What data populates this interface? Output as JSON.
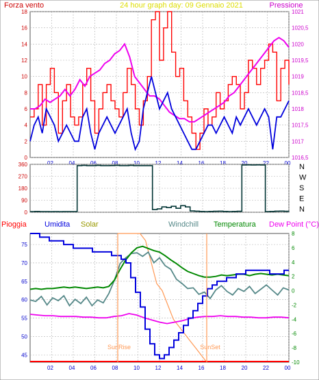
{
  "header": {
    "left_title": "Forza vento",
    "center_title": "24 hour graph day:  09 Gennaio 2021",
    "right_title": "Pressione"
  },
  "colors": {
    "wind": "#ff0000",
    "wind_avg": "#0000dd",
    "pressure": "#ee00ee",
    "direction": "#003333",
    "humidity": "#0000dd",
    "solar": "#ff9955",
    "windchill": "#558888",
    "temperature": "#008800",
    "dewpoint": "#ee00ee",
    "rain": "#ff0000",
    "axis_left": "#cc0000",
    "axis_right": "#cc00cc",
    "axis_bottom": "#0000cc",
    "grid": "#b0b0b0",
    "sun": "#ff9955"
  },
  "chart_data": [
    {
      "type": "line",
      "title": "24 hour graph day:  09 Gennaio 2021",
      "ylabel": "Forza vento",
      "y2label": "Pressione",
      "ylim": [
        0,
        18
      ],
      "y2lim": [
        1016.5,
        1021
      ],
      "y_ticks": [
        "0",
        "2",
        "4",
        "6",
        "8",
        "10",
        "12",
        "14",
        "16",
        "18"
      ],
      "y2_ticks": [
        "1016,5",
        "1017",
        "1017,5",
        "1018",
        "1018,5",
        "1019",
        "1019,5",
        "1020",
        "1020,5",
        "1021"
      ],
      "x_ticks": [
        "02",
        "04",
        "06",
        "08",
        "10",
        "12",
        "14",
        "16",
        "18",
        "20",
        "22",
        "00"
      ],
      "grid": true,
      "series": [
        {
          "key": "gust",
          "axis": "left",
          "values": [
            5,
            6,
            9,
            4,
            9,
            11,
            8,
            3,
            7,
            9,
            5,
            4,
            5,
            9,
            11,
            7,
            3,
            6,
            8,
            9,
            7,
            6,
            5,
            8,
            11,
            9,
            6,
            4,
            7,
            10,
            17,
            18,
            12,
            16,
            18,
            13,
            10,
            11,
            7,
            5,
            3,
            1,
            3,
            6,
            4,
            5,
            8,
            6,
            7,
            9,
            10,
            9,
            6,
            8,
            12,
            11,
            9,
            11,
            12,
            14,
            13,
            7,
            11,
            12,
            9
          ]
        },
        {
          "key": "average",
          "axis": "left",
          "values": [
            2,
            4,
            5,
            3,
            6,
            5,
            4,
            2,
            3,
            4,
            3,
            2,
            2,
            5,
            6,
            3,
            1,
            3,
            4,
            5,
            4,
            3,
            4,
            5,
            6,
            3,
            1,
            2,
            6,
            8,
            10,
            8,
            6,
            7,
            8,
            6,
            5,
            4,
            3,
            2,
            1,
            1,
            2,
            3,
            4,
            4,
            3,
            4,
            5,
            4,
            3,
            5,
            4,
            5,
            6,
            5,
            4,
            5,
            6,
            5,
            1,
            5,
            5,
            6,
            7
          ]
        },
        {
          "key": "pressure",
          "axis": "right",
          "values": [
            1018,
            1018,
            1018.1,
            1018.3,
            1018.2,
            1018.3,
            1018.4,
            1018.6,
            1018.4,
            1018.6,
            1018.9,
            1018.7,
            1019,
            1019.1,
            1019.2,
            1019.4,
            1019.5,
            1019.7,
            1019.8,
            1020,
            1019.6,
            1019,
            1018.8,
            1018.6,
            1018.4,
            1018.4,
            1018.3,
            1018.1,
            1017.9,
            1017.8,
            1017.7,
            1017.7,
            1017.6,
            1017.6,
            1017.7,
            1017.8,
            1017.9,
            1018,
            1018.1,
            1018.2,
            1018.4,
            1018.5,
            1018.7,
            1018.9,
            1019.1,
            1019.3,
            1019.5,
            1019.7,
            1019.9,
            1020.1,
            1020.2,
            1020.1,
            1019.9
          ]
        }
      ]
    },
    {
      "type": "line",
      "y_ticks": [
        "0",
        "90",
        "180",
        "270",
        "360"
      ],
      "right_labels": [
        "N",
        "W",
        "S",
        "E",
        "N"
      ],
      "ylim": [
        0,
        360
      ],
      "grid": true,
      "series": [
        {
          "key": "direction",
          "values": [
            5,
            6,
            5,
            5,
            4,
            5,
            4,
            5,
            5,
            5,
            350,
            352,
            350,
            350,
            352,
            350,
            350,
            351,
            352,
            350,
            350,
            352,
            350,
            350,
            350,
            350,
            20,
            25,
            40,
            35,
            45,
            30,
            50,
            40,
            10,
            8,
            6,
            5,
            6,
            7,
            8,
            6,
            5,
            6,
            7,
            355,
            356,
            355,
            356,
            355,
            5,
            6,
            8,
            9,
            7,
            8
          ]
        }
      ]
    },
    {
      "type": "line",
      "ylim": [
        43,
        78
      ],
      "y2lim": [
        -10,
        8
      ],
      "y_ticks": [
        "45",
        "50",
        "55",
        "60",
        "65",
        "70",
        "75"
      ],
      "y2_ticks": [
        "-10",
        "-8",
        "-6",
        "-4",
        "-2",
        "0",
        "2",
        "4",
        "6",
        "8"
      ],
      "x_ticks": [
        "02",
        "04",
        "06",
        "08",
        "10",
        "12",
        "14",
        "16",
        "18",
        "20",
        "22",
        "00"
      ],
      "grid": true,
      "legend": [
        "Pioggia",
        "Umidita",
        "Solar",
        "Windchill",
        "Temperatura",
        "Dew Point (°C)"
      ],
      "annotations": [
        "SunRise",
        "SunSet"
      ],
      "series": [
        {
          "key": "humidity",
          "axis": "left",
          "values": [
            78,
            78,
            77,
            77,
            76,
            76,
            76,
            75,
            75,
            74,
            74,
            74,
            74,
            73,
            73,
            73,
            73,
            72,
            72,
            71,
            70,
            66,
            62,
            58,
            52,
            48,
            45,
            44,
            45,
            47,
            49,
            51,
            53,
            55,
            57,
            59,
            61,
            63,
            64,
            65,
            65,
            66,
            66,
            67,
            67,
            68,
            68,
            68,
            68,
            68,
            67,
            67,
            67,
            68,
            68
          ]
        },
        {
          "key": "temperature",
          "axis": "right",
          "values": [
            0.2,
            0.3,
            0.2,
            0.3,
            0.3,
            0.4,
            0.5,
            0.4,
            0.5,
            0.4,
            0.3,
            0.4,
            0.5,
            0.4,
            0.6,
            1.5,
            3,
            4.3,
            5.3,
            6,
            6.2,
            5.9,
            5.6,
            5.4,
            4.9,
            4.3,
            3.8,
            3.2,
            2.7,
            2.4,
            2.1,
            1.9,
            1.9,
            2,
            2.2,
            2.1,
            2.2,
            2.3,
            2.3,
            2.1,
            2.3,
            2.4,
            2.3,
            2.2,
            2.3,
            2.2,
            2.1
          ]
        },
        {
          "key": "windchill",
          "axis": "right",
          "values": [
            -1.3,
            -1.5,
            -0.8,
            -2,
            -1,
            -1.4,
            -0.7,
            -2.1,
            -1.2,
            -1.8,
            -0.9,
            -2.1,
            -1.3,
            -1.7,
            -0.4,
            1.5,
            3.8,
            4.6,
            5.2,
            5.3,
            4.8,
            5.4,
            3.9,
            4.6,
            3.5,
            3,
            1.6,
            1,
            0.3,
            0.4,
            -0.5,
            -0.2,
            -1.1,
            0.1,
            0.7,
            -0.1,
            -0.6,
            0.3,
            -0.1,
            0.6,
            -0.4,
            0.2,
            0.8,
            0.1,
            -0.6,
            0.4,
            0.1
          ]
        },
        {
          "key": "dewpoint",
          "axis": "right",
          "values": [
            -3.3,
            -3.4,
            -3.5,
            -3.5,
            -3.6,
            -3.6,
            -3.6,
            -3.7,
            -3.7,
            -3.8,
            -3.8,
            -3.6,
            -3.5,
            -3.2,
            -3.4,
            -3.8,
            -4.1,
            -4.4,
            -4.6,
            -4.4,
            -4.2,
            -3.9,
            -3.7,
            -3.6,
            -3.6,
            -3.5,
            -3.6,
            -3.6,
            -3.7,
            -3.7,
            -3.8,
            -3.8,
            -3.7,
            -3.7,
            -3.8
          ]
        },
        {
          "key": "solar",
          "axis": "right",
          "values": [
            8,
            8,
            8,
            8,
            8,
            7,
            4,
            1,
            0,
            -2,
            -4,
            -5,
            -6,
            -7,
            -8,
            -9,
            -10
          ]
        },
        {
          "key": "rain",
          "axis": "left",
          "values": [
            0,
            0,
            0,
            0,
            0,
            0,
            0,
            0,
            0,
            0,
            0,
            0,
            0,
            0,
            0,
            0
          ]
        }
      ]
    }
  ]
}
